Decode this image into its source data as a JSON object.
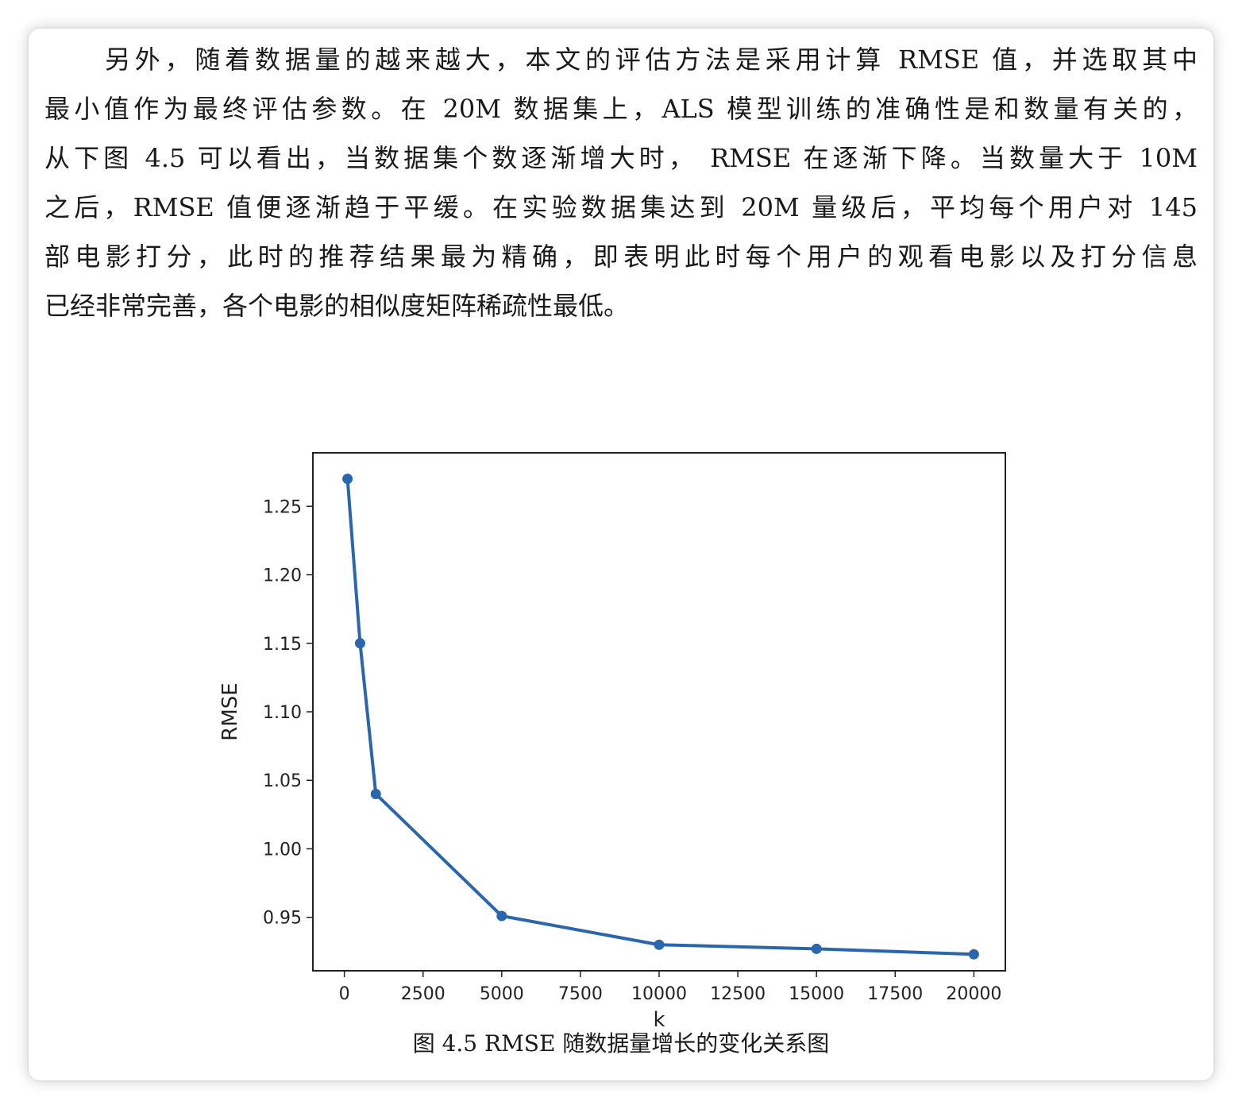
{
  "paragraph": {
    "lines": [
      "另外，随着数据量的越来越大，本文的评估方法是采用计算 RMSE 值，并选取其中",
      "最小值作为最终评估参数。在 20M 数据集上，ALS 模型训练的准确性是和数量有关的，",
      "从下图 4.5 可以看出，当数据集个数逐渐增大时， RMSE 在逐渐下降。当数量大于 10M",
      "之后，RMSE 值便逐渐趋于平缓。在实验数据集达到 20M 量级后，平均每个用户对 145",
      "部电影打分，此时的推荐结果最为精确，即表明此时每个用户的观看电影以及打分信息",
      "已经非常完善，各个电影的相似度矩阵稀疏性最低。"
    ]
  },
  "figure": {
    "caption": "图 4.5 RMSE 随数据量增长的变化关系图"
  },
  "chart_data": {
    "type": "line",
    "title": "",
    "xlabel": "k",
    "ylabel": "RMSE",
    "x": [
      100,
      500,
      1000,
      5000,
      10000,
      15000,
      20000
    ],
    "y": [
      1.27,
      1.15,
      1.04,
      0.951,
      0.93,
      0.927,
      0.923
    ],
    "xlim": [
      -1000,
      21000
    ],
    "ylim": [
      0.911,
      1.289
    ],
    "xticks": [
      0,
      2500,
      5000,
      7500,
      10000,
      12500,
      15000,
      17500,
      20000
    ],
    "xtick_labels": [
      "0",
      "2500",
      "5000",
      "7500",
      "10000",
      "12500",
      "15000",
      "17500",
      "20000"
    ],
    "yticks": [
      0.95,
      1.0,
      1.05,
      1.1,
      1.15,
      1.2,
      1.25
    ],
    "ytick_labels": [
      "0.95",
      "1.00",
      "1.05",
      "1.10",
      "1.15",
      "1.20",
      "1.25"
    ],
    "grid": false,
    "legend": "none",
    "line_color": "#2a66ad"
  }
}
